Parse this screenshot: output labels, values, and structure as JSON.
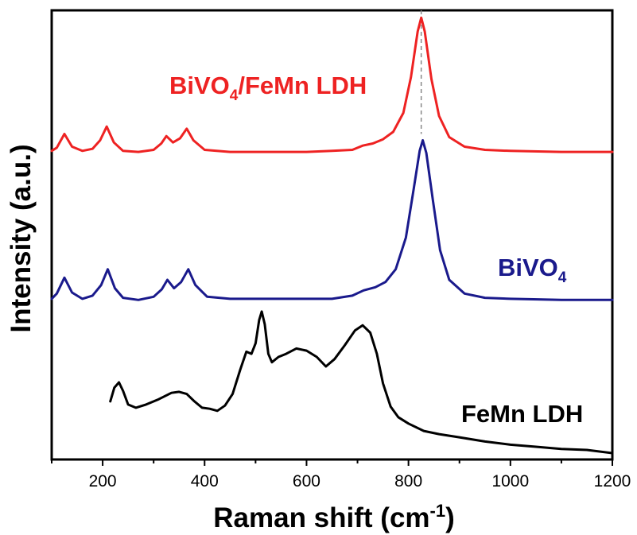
{
  "chart_data": {
    "type": "line",
    "xlabel": "Raman shift (cm⁻¹)",
    "ylabel": "Intensity (a.u.)",
    "xlim": [
      100,
      1200
    ],
    "ylim": [
      0,
      4.25
    ],
    "xticks": [
      200,
      400,
      600,
      800,
      1000,
      1200
    ],
    "x_tick_labels": [
      "200",
      "400",
      "600",
      "800",
      "1000",
      "1200"
    ],
    "yticks_shown": false,
    "grid": false,
    "reference_line": {
      "x": 825,
      "style": "dashed",
      "color": "#888888"
    },
    "series": [
      {
        "name": "BiVO4/FeMn LDH",
        "color": "#ee2222",
        "label_offset": 2.9,
        "points": [
          [
            100,
            0.02
          ],
          [
            110,
            0.05
          ],
          [
            125,
            0.18
          ],
          [
            140,
            0.06
          ],
          [
            160,
            0.02
          ],
          [
            180,
            0.04
          ],
          [
            195,
            0.12
          ],
          [
            208,
            0.25
          ],
          [
            222,
            0.1
          ],
          [
            240,
            0.02
          ],
          [
            270,
            0.01
          ],
          [
            300,
            0.03
          ],
          [
            315,
            0.09
          ],
          [
            325,
            0.16
          ],
          [
            338,
            0.1
          ],
          [
            352,
            0.14
          ],
          [
            365,
            0.23
          ],
          [
            378,
            0.12
          ],
          [
            400,
            0.03
          ],
          [
            450,
            0.01
          ],
          [
            500,
            0.01
          ],
          [
            550,
            0.01
          ],
          [
            600,
            0.01
          ],
          [
            650,
            0.02
          ],
          [
            690,
            0.03
          ],
          [
            710,
            0.07
          ],
          [
            730,
            0.09
          ],
          [
            750,
            0.13
          ],
          [
            770,
            0.2
          ],
          [
            790,
            0.38
          ],
          [
            805,
            0.72
          ],
          [
            818,
            1.15
          ],
          [
            825,
            1.28
          ],
          [
            832,
            1.15
          ],
          [
            845,
            0.7
          ],
          [
            860,
            0.35
          ],
          [
            880,
            0.15
          ],
          [
            910,
            0.06
          ],
          [
            950,
            0.03
          ],
          [
            1000,
            0.02
          ],
          [
            1100,
            0.01
          ],
          [
            1200,
            0.01
          ]
        ]
      },
      {
        "name": "BiVO4",
        "color": "#1a1a8c",
        "label_offset": 1.5,
        "points": [
          [
            100,
            0.02
          ],
          [
            110,
            0.07
          ],
          [
            125,
            0.22
          ],
          [
            140,
            0.08
          ],
          [
            160,
            0.02
          ],
          [
            180,
            0.05
          ],
          [
            197,
            0.15
          ],
          [
            210,
            0.3
          ],
          [
            224,
            0.12
          ],
          [
            240,
            0.03
          ],
          [
            270,
            0.01
          ],
          [
            300,
            0.04
          ],
          [
            316,
            0.11
          ],
          [
            327,
            0.2
          ],
          [
            340,
            0.12
          ],
          [
            354,
            0.18
          ],
          [
            368,
            0.3
          ],
          [
            382,
            0.15
          ],
          [
            405,
            0.04
          ],
          [
            450,
            0.02
          ],
          [
            500,
            0.02
          ],
          [
            550,
            0.02
          ],
          [
            600,
            0.02
          ],
          [
            650,
            0.02
          ],
          [
            690,
            0.05
          ],
          [
            712,
            0.1
          ],
          [
            735,
            0.13
          ],
          [
            755,
            0.18
          ],
          [
            775,
            0.3
          ],
          [
            795,
            0.6
          ],
          [
            810,
            1.05
          ],
          [
            822,
            1.42
          ],
          [
            828,
            1.52
          ],
          [
            835,
            1.4
          ],
          [
            848,
            0.95
          ],
          [
            862,
            0.48
          ],
          [
            880,
            0.2
          ],
          [
            910,
            0.07
          ],
          [
            950,
            0.03
          ],
          [
            1000,
            0.02
          ],
          [
            1100,
            0.01
          ],
          [
            1200,
            0.01
          ]
        ]
      },
      {
        "name": "FeMn LDH",
        "color": "#000000",
        "label_offset": 0.0,
        "points": [
          [
            215,
            0.55
          ],
          [
            223,
            0.68
          ],
          [
            232,
            0.73
          ],
          [
            240,
            0.65
          ],
          [
            250,
            0.52
          ],
          [
            265,
            0.49
          ],
          [
            285,
            0.52
          ],
          [
            310,
            0.57
          ],
          [
            335,
            0.63
          ],
          [
            350,
            0.64
          ],
          [
            365,
            0.62
          ],
          [
            380,
            0.55
          ],
          [
            395,
            0.49
          ],
          [
            410,
            0.48
          ],
          [
            425,
            0.46
          ],
          [
            440,
            0.51
          ],
          [
            455,
            0.62
          ],
          [
            470,
            0.85
          ],
          [
            482,
            1.02
          ],
          [
            492,
            1.0
          ],
          [
            500,
            1.1
          ],
          [
            507,
            1.32
          ],
          [
            512,
            1.4
          ],
          [
            518,
            1.28
          ],
          [
            525,
            1.0
          ],
          [
            532,
            0.92
          ],
          [
            545,
            0.97
          ],
          [
            560,
            1.0
          ],
          [
            580,
            1.05
          ],
          [
            600,
            1.03
          ],
          [
            620,
            0.97
          ],
          [
            638,
            0.88
          ],
          [
            655,
            0.95
          ],
          [
            675,
            1.08
          ],
          [
            695,
            1.22
          ],
          [
            710,
            1.27
          ],
          [
            725,
            1.2
          ],
          [
            738,
            1.0
          ],
          [
            750,
            0.72
          ],
          [
            765,
            0.5
          ],
          [
            780,
            0.4
          ],
          [
            800,
            0.34
          ],
          [
            830,
            0.27
          ],
          [
            860,
            0.24
          ],
          [
            900,
            0.21
          ],
          [
            950,
            0.17
          ],
          [
            1000,
            0.14
          ],
          [
            1050,
            0.12
          ],
          [
            1100,
            0.1
          ],
          [
            1150,
            0.09
          ],
          [
            1200,
            0.06
          ]
        ]
      }
    ],
    "annotations": [
      {
        "text_main": "BiVO",
        "text_sub": "4",
        "text_rest": "/FeMn LDH",
        "color": "#ee2222"
      },
      {
        "text_main": "BiVO",
        "text_sub": "4",
        "text_rest": "",
        "color": "#1a1a8c"
      },
      {
        "text_main": "FeMn LDH",
        "text_sub": "",
        "text_rest": "",
        "color": "#000000"
      }
    ]
  },
  "axis_text": {
    "ylabel": "Intensity (a.u.)",
    "xlabel_main": "Raman shift (cm",
    "xlabel_sup": "-1",
    "xlabel_close": ")"
  }
}
